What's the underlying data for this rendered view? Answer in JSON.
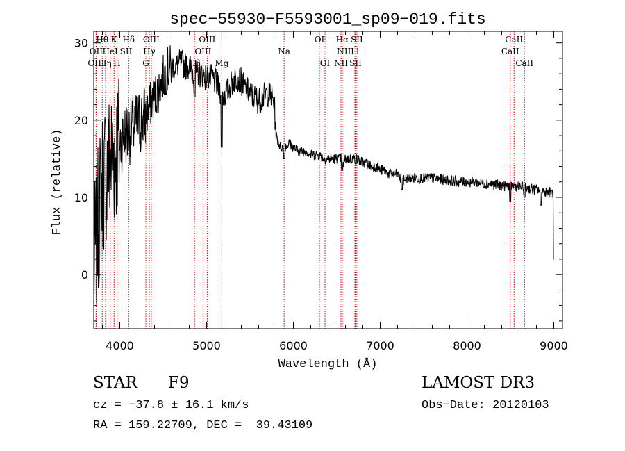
{
  "chart_data": {
    "type": "line",
    "title": "spec−55930−F5593001_sp09−019.fits",
    "xlabel": "Wavelength (Å)",
    "ylabel": "Flux (relative)",
    "xlim": [
      3700,
      9100
    ],
    "ylim": [
      -7,
      31.5
    ],
    "x_ticks": [
      4000,
      5000,
      6000,
      7000,
      8000,
      9000
    ],
    "y_ticks": [
      0,
      10,
      20,
      30
    ],
    "series": [
      {
        "name": "spectrum",
        "anchor_wavelengths": [
          3700,
          3760,
          3800,
          3850,
          3900,
          3950,
          4000,
          4050,
          4100,
          4150,
          4200,
          4250,
          4300,
          4350,
          4400,
          4450,
          4500,
          4550,
          4600,
          4650,
          4700,
          4750,
          4800,
          4850,
          4900,
          4950,
          5000,
          5050,
          5100,
          5150,
          5200,
          5250,
          5300,
          5350,
          5400,
          5450,
          5500,
          5550,
          5600,
          5650,
          5700,
          5750,
          5780,
          5800,
          5850,
          5900,
          5950,
          6000,
          6050,
          6100,
          6150,
          6200,
          6250,
          6300,
          6350,
          6400,
          6450,
          6500,
          6550,
          6563,
          6600,
          6650,
          6700,
          6750,
          6800,
          6850,
          6900,
          6950,
          7000,
          7050,
          7100,
          7150,
          7200,
          7250,
          7300,
          7400,
          7500,
          7600,
          7700,
          7800,
          7900,
          8000,
          8100,
          8200,
          8300,
          8400,
          8500,
          8600,
          8700,
          8800,
          8900,
          9000
        ],
        "anchor_flux": [
          1,
          8,
          12,
          14,
          15,
          16,
          17,
          18,
          18.5,
          19,
          19.5,
          20,
          20.5,
          22,
          23,
          24,
          25.5,
          26.5,
          27,
          27,
          27.5,
          27,
          27,
          26,
          26,
          26,
          25.5,
          25.5,
          25,
          24,
          23,
          24,
          25,
          25.5,
          25,
          24,
          23.5,
          23,
          22.5,
          23,
          23.5,
          23,
          22,
          18,
          16.5,
          16.5,
          17,
          16.5,
          16,
          16,
          16,
          15.5,
          15.5,
          15.5,
          15,
          15,
          15,
          15,
          15,
          14,
          15,
          15,
          15,
          14.8,
          14.5,
          14.5,
          14,
          14,
          13.5,
          13.5,
          13,
          13,
          13,
          12,
          12.5,
          12.5,
          12.5,
          12.5,
          12.3,
          12.2,
          12,
          12,
          12,
          11.8,
          11.7,
          11.5,
          11.5,
          11.4,
          11.2,
          11,
          10.8,
          10.5
        ],
        "features": [
          {
            "wavelength": 4861,
            "flux": 23
          },
          {
            "wavelength": 5175,
            "flux": 16.5
          },
          {
            "wavelength": 5893,
            "flux": 15
          },
          {
            "wavelength": 6563,
            "flux": 13.5
          },
          {
            "wavelength": 7250,
            "flux": 11
          },
          {
            "wavelength": 8498,
            "flux": 9.5
          },
          {
            "wavelength": 8662,
            "flux": 10
          },
          {
            "wavelength": 8850,
            "flux": 9
          },
          {
            "wavelength": 9000,
            "flux": 2
          }
        ]
      }
    ],
    "line_markers": [
      {
        "label": "Hθ",
        "wavelength": 3798,
        "row": 0
      },
      {
        "label": "K",
        "wavelength": 3934,
        "row": 0
      },
      {
        "label": "Hδ",
        "wavelength": 4102,
        "row": 0
      },
      {
        "label": "OIII",
        "wavelength": 4363,
        "row": 0
      },
      {
        "label": "OIII",
        "wavelength": 5007,
        "row": 0
      },
      {
        "label": "OI",
        "wavelength": 6300,
        "row": 0
      },
      {
        "label": "Hα",
        "wavelength": 6563,
        "row": 0
      },
      {
        "label": "SII",
        "wavelength": 6731,
        "row": 0
      },
      {
        "label": "CaII",
        "wavelength": 8542,
        "row": 0
      },
      {
        "label": "OII",
        "wavelength": 3727,
        "row": 1
      },
      {
        "label": "HeI",
        "wavelength": 3889,
        "row": 1
      },
      {
        "label": "SII",
        "wavelength": 4072,
        "row": 1
      },
      {
        "label": "Hγ",
        "wavelength": 4340,
        "row": 1
      },
      {
        "label": "OIII",
        "wavelength": 4959,
        "row": 1
      },
      {
        "label": "Na",
        "wavelength": 5893,
        "row": 1
      },
      {
        "label": "NII",
        "wavelength": 6583,
        "row": 1
      },
      {
        "label": "Li",
        "wavelength": 6708,
        "row": 1
      },
      {
        "label": "CaII",
        "wavelength": 8498,
        "row": 1
      },
      {
        "label": "OIII",
        "wavelength": 3727,
        "row": 2
      },
      {
        "label": "Hη",
        "wavelength": 3835,
        "row": 2
      },
      {
        "label": "H",
        "wavelength": 3968,
        "row": 2
      },
      {
        "label": "G",
        "wavelength": 4300,
        "row": 2
      },
      {
        "label": "Hβ",
        "wavelength": 4861,
        "row": 2
      },
      {
        "label": "Mg",
        "wavelength": 5175,
        "row": 2
      },
      {
        "label": "OI",
        "wavelength": 6364,
        "row": 2
      },
      {
        "label": "NII",
        "wavelength": 6548,
        "row": 2
      },
      {
        "label": "SII",
        "wavelength": 6716,
        "row": 2
      },
      {
        "label": "CaII",
        "wavelength": 8662,
        "row": 2
      }
    ]
  },
  "info": {
    "object_class": "STAR",
    "subclass": "F9",
    "survey": "LAMOST DR3",
    "cz": "cz = −37.8 ± 16.1 km/s",
    "obs_date": "Obs−Date: 20120103",
    "radec": "RA = 159.22709, DEC =  39.43109"
  },
  "colors": {
    "spectrum": "#000000",
    "markers": "#cc0000",
    "axes": "#000000",
    "text": "#000000"
  }
}
